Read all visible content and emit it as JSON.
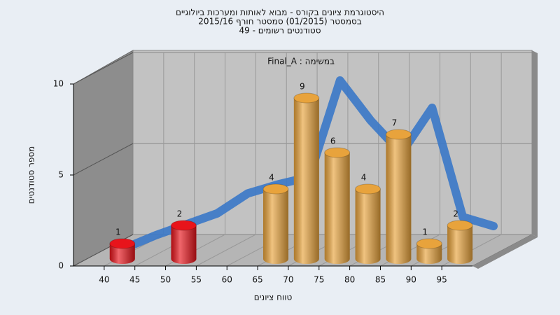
{
  "chart_data": {
    "type": "histogram",
    "title": [
      "היסטוגרמת ציונים בקורס - מבוא לאותות ומערכות ביולוגיים",
      "בסמסטר (01/2015) סמסטר חורף 2015/16",
      "סטודנטים רשומים - 49"
    ],
    "annotation": "Final_A : במשימה",
    "xlabel": "טווח ציונים",
    "ylabel": "מספר סטודנטים",
    "bins": [
      40,
      45,
      50,
      55,
      60,
      65,
      70,
      75,
      80,
      85,
      90,
      95,
      100
    ],
    "values": [
      1,
      0,
      2,
      0,
      0,
      4,
      9,
      6,
      4,
      7,
      1,
      2
    ],
    "colors": [
      "#e8141b",
      "#e8141b",
      "#e8141b",
      "#e8141b",
      "#e8a33c",
      "#e8a33c",
      "#e8a33c",
      "#e8a33c",
      "#e8a33c",
      "#e8a33c",
      "#e8a33c",
      "#e8a33c"
    ],
    "trend": {
      "color": "#3a78c8",
      "x": [
        40,
        45,
        50,
        55,
        60,
        65,
        70,
        75,
        80,
        85,
        90,
        95,
        100
      ],
      "values": [
        0.3,
        1,
        1.6,
        2.2,
        3.3,
        3.8,
        4.2,
        9.5,
        7.3,
        5.5,
        8,
        2,
        1.5
      ]
    },
    "xlim": [
      35,
      100
    ],
    "ylim": [
      0,
      10
    ],
    "xticks": [
      40,
      45,
      50,
      55,
      60,
      65,
      70,
      75,
      80,
      85,
      90,
      95
    ],
    "yticks": [
      0,
      5,
      10
    ],
    "grid": true
  }
}
